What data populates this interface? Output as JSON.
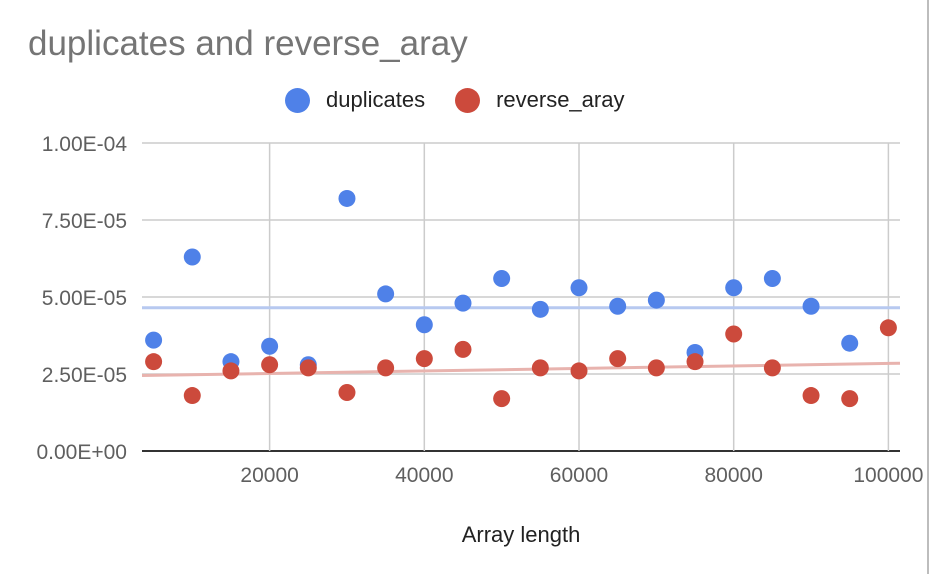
{
  "chart_data": {
    "type": "scatter",
    "title": "duplicates and reverse_aray",
    "xlabel": "Array length",
    "ylabel": "",
    "xlim": [
      3500,
      101500
    ],
    "ylim": [
      0,
      0.0001
    ],
    "x_ticks": [
      20000,
      40000,
      60000,
      80000,
      100000
    ],
    "x_tick_labels": [
      "20000",
      "40000",
      "60000",
      "80000",
      "100000"
    ],
    "y_ticks": [
      0,
      2.5e-05,
      5e-05,
      7.5e-05,
      0.0001
    ],
    "y_tick_labels": [
      "0.00E+00",
      "2.50E-05",
      "5.00E-05",
      "7.50E-05",
      "1.00E-04"
    ],
    "grid": true,
    "legend_position": "top",
    "series": [
      {
        "name": "duplicates",
        "color": "#4f81e8",
        "trendline_color": "#b7c9f0",
        "trendline": [
          4.65e-05,
          4.65e-05
        ],
        "points": [
          {
            "x": 5000,
            "y": 3.6e-05
          },
          {
            "x": 10000,
            "y": 6.3e-05
          },
          {
            "x": 15000,
            "y": 2.9e-05
          },
          {
            "x": 20000,
            "y": 3.4e-05
          },
          {
            "x": 25000,
            "y": 2.8e-05
          },
          {
            "x": 30000,
            "y": 8.2e-05
          },
          {
            "x": 35000,
            "y": 5.1e-05
          },
          {
            "x": 40000,
            "y": 4.1e-05
          },
          {
            "x": 45000,
            "y": 4.8e-05
          },
          {
            "x": 50000,
            "y": 5.6e-05
          },
          {
            "x": 55000,
            "y": 4.6e-05
          },
          {
            "x": 60000,
            "y": 5.3e-05
          },
          {
            "x": 65000,
            "y": 4.7e-05
          },
          {
            "x": 70000,
            "y": 4.9e-05
          },
          {
            "x": 75000,
            "y": 3.2e-05
          },
          {
            "x": 80000,
            "y": 5.3e-05
          },
          {
            "x": 85000,
            "y": 5.6e-05
          },
          {
            "x": 90000,
            "y": 4.7e-05
          },
          {
            "x": 95000,
            "y": 3.5e-05
          }
        ]
      },
      {
        "name": "reverse_aray",
        "color": "#cc4a3c",
        "trendline_color": "#e8b3ae",
        "trendline": [
          2.45e-05,
          2.85e-05
        ],
        "points": [
          {
            "x": 5000,
            "y": 2.9e-05
          },
          {
            "x": 10000,
            "y": 1.8e-05
          },
          {
            "x": 15000,
            "y": 2.6e-05
          },
          {
            "x": 20000,
            "y": 2.8e-05
          },
          {
            "x": 25000,
            "y": 2.7e-05
          },
          {
            "x": 30000,
            "y": 1.9e-05
          },
          {
            "x": 35000,
            "y": 2.7e-05
          },
          {
            "x": 40000,
            "y": 3e-05
          },
          {
            "x": 45000,
            "y": 3.3e-05
          },
          {
            "x": 50000,
            "y": 1.7e-05
          },
          {
            "x": 55000,
            "y": 2.7e-05
          },
          {
            "x": 60000,
            "y": 2.6e-05
          },
          {
            "x": 65000,
            "y": 3e-05
          },
          {
            "x": 70000,
            "y": 2.7e-05
          },
          {
            "x": 75000,
            "y": 2.9e-05
          },
          {
            "x": 80000,
            "y": 3.8e-05
          },
          {
            "x": 85000,
            "y": 2.7e-05
          },
          {
            "x": 90000,
            "y": 1.8e-05
          },
          {
            "x": 95000,
            "y": 1.7e-05
          },
          {
            "x": 100000,
            "y": 4e-05
          }
        ]
      }
    ]
  }
}
